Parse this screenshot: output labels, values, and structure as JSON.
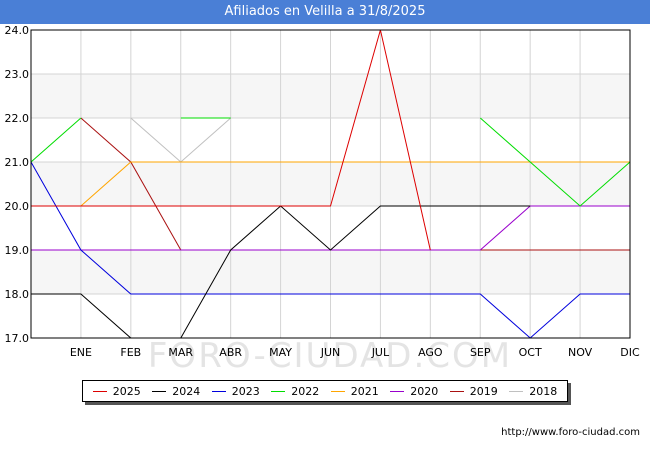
{
  "title": "Afiliados en Velilla a 31/8/2025",
  "source_url": "http://www.foro-ciudad.com",
  "watermark": "FORO-CIUDAD.COM",
  "chart_data": {
    "type": "line",
    "title": "Afiliados en Velilla a 31/8/2025",
    "xlabel": "",
    "ylabel": "",
    "categories": [
      "",
      "ENE",
      "FEB",
      "MAR",
      "ABR",
      "MAY",
      "JUN",
      "JUL",
      "AGO",
      "SEP",
      "OCT",
      "NOV",
      "DIC"
    ],
    "ylim": [
      17,
      24
    ],
    "yticks": [
      "17.0",
      "18.0",
      "19.0",
      "20.0",
      "21.0",
      "22.0",
      "23.0",
      "24.0"
    ],
    "grid": true,
    "legend_position": "bottom",
    "series": [
      {
        "name": "2025",
        "color": "#dd0000",
        "values": [
          20,
          20,
          20,
          20,
          20,
          20,
          20,
          24,
          19,
          null,
          null,
          null,
          null
        ]
      },
      {
        "name": "2024",
        "color": "#000000",
        "values": [
          18,
          18,
          17,
          17,
          19,
          20,
          19,
          20,
          20,
          20,
          20,
          null,
          null
        ]
      },
      {
        "name": "2023",
        "color": "#0000dd",
        "values": [
          21,
          19,
          18,
          18,
          18,
          18,
          18,
          18,
          18,
          18,
          17,
          18,
          18
        ]
      },
      {
        "name": "2022",
        "color": "#00dd00",
        "values": [
          21,
          22,
          null,
          22,
          22,
          null,
          null,
          null,
          null,
          22,
          21,
          20,
          21
        ]
      },
      {
        "name": "2021",
        "color": "#ffa500",
        "values": [
          20,
          20,
          21,
          21,
          21,
          21,
          21,
          21,
          21,
          21,
          21,
          21,
          21
        ]
      },
      {
        "name": "2020",
        "color": "#9900cc",
        "values": [
          19,
          19,
          19,
          19,
          19,
          19,
          19,
          19,
          19,
          19,
          20,
          20,
          20
        ]
      },
      {
        "name": "2019",
        "color": "#aa1111",
        "values": [
          null,
          22,
          21,
          19,
          19,
          19,
          19,
          19,
          19,
          19,
          19,
          19,
          19
        ]
      },
      {
        "name": "2018",
        "color": "#c0c0c0",
        "values": [
          null,
          null,
          22,
          21,
          22,
          null,
          null,
          null,
          null,
          null,
          null,
          null,
          null
        ]
      }
    ]
  }
}
